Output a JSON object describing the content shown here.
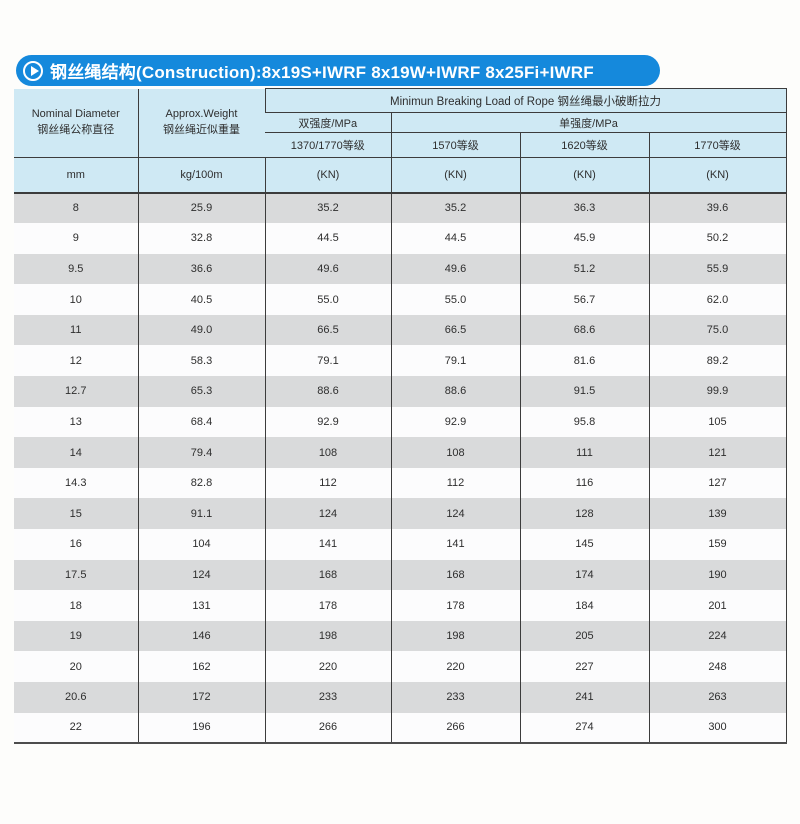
{
  "title_bar": {
    "text": "钢丝绳结构(Construction):8x19S+IWRF 8x19W+IWRF 8x25Fi+IWRF",
    "bar_color": "#1589dc"
  },
  "table": {
    "header": {
      "nominal_diameter_en": "Nominal Diameter",
      "nominal_diameter_zh": "钢丝绳公称直径",
      "approx_weight_en": "Approx.Weight",
      "approx_weight_zh": "钢丝绳近似重量",
      "breaking_load_group": "Minimun Breaking Load of Rope  钢丝绳最小破断拉力",
      "dual_strength": "双强度/MPa",
      "single_strength": "单强度/MPa",
      "grades": [
        "1370/1770等级",
        "1570等级",
        "1620等级",
        "1770等级"
      ],
      "units": [
        "mm",
        "kg/100m",
        "(KN)",
        "(KN)",
        "(KN)",
        "(KN)"
      ]
    },
    "rows": [
      [
        "8",
        "25.9",
        "35.2",
        "35.2",
        "36.3",
        "39.6"
      ],
      [
        "9",
        "32.8",
        "44.5",
        "44.5",
        "45.9",
        "50.2"
      ],
      [
        "9.5",
        "36.6",
        "49.6",
        "49.6",
        "51.2",
        "55.9"
      ],
      [
        "10",
        "40.5",
        "55.0",
        "55.0",
        "56.7",
        "62.0"
      ],
      [
        "11",
        "49.0",
        "66.5",
        "66.5",
        "68.6",
        "75.0"
      ],
      [
        "12",
        "58.3",
        "79.1",
        "79.1",
        "81.6",
        "89.2"
      ],
      [
        "12.7",
        "65.3",
        "88.6",
        "88.6",
        "91.5",
        "99.9"
      ],
      [
        "13",
        "68.4",
        "92.9",
        "92.9",
        "95.8",
        "105"
      ],
      [
        "14",
        "79.4",
        "108",
        "108",
        "111",
        "121"
      ],
      [
        "14.3",
        "82.8",
        "112",
        "112",
        "116",
        "127"
      ],
      [
        "15",
        "91.1",
        "124",
        "124",
        "128",
        "139"
      ],
      [
        "16",
        "104",
        "141",
        "141",
        "145",
        "159"
      ],
      [
        "17.5",
        "124",
        "168",
        "168",
        "174",
        "190"
      ],
      [
        "18",
        "131",
        "178",
        "178",
        "184",
        "201"
      ],
      [
        "19",
        "146",
        "198",
        "198",
        "205",
        "224"
      ],
      [
        "20",
        "162",
        "220",
        "220",
        "227",
        "248"
      ],
      [
        "20.6",
        "172",
        "233",
        "233",
        "241",
        "263"
      ],
      [
        "22",
        "196",
        "266",
        "266",
        "274",
        "300"
      ]
    ],
    "colors": {
      "header_bg": "#cfe9f4",
      "row_gray": "#d9dadb",
      "row_white": "#fcfcfd",
      "border": "#3c3c3c"
    }
  }
}
